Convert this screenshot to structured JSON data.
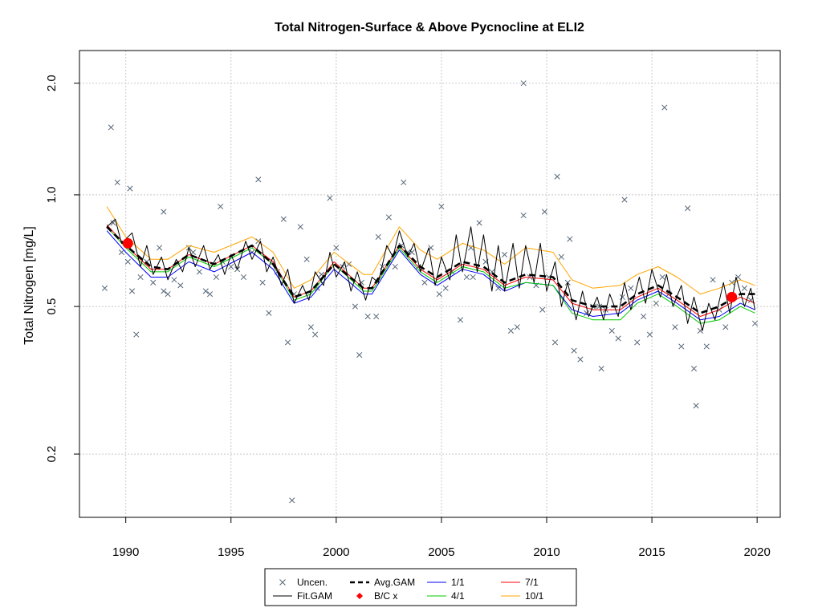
{
  "chart_data": {
    "type": "line",
    "title": "Total Nitrogen-Surface & Above Pycnocline at ELI2",
    "xlabel": "",
    "ylabel": "Total Nitrogen [mg/L]",
    "y_scale": "log",
    "xlim": [
      1987.8,
      2021.1
    ],
    "ylim": [
      0.135,
      2.45
    ],
    "x_ticks": [
      1990,
      1995,
      2000,
      2005,
      2010,
      2015,
      2020
    ],
    "y_ticks": [
      0.2,
      0.5,
      1.0,
      2.0
    ],
    "grid": true,
    "legend_position": "bottom",
    "colors": {
      "uncen": "#556677",
      "fit_gam": "#000000",
      "avg_gam": "#000000",
      "bc": "#ff0000",
      "s1_1": "#0000ff",
      "s4_1": "#00cc00",
      "s7_1": "#ff0000",
      "s10_1": "#ffa500"
    },
    "legend": [
      {
        "key": "uncen",
        "label": "Uncen."
      },
      {
        "key": "fit_gam",
        "label": "Fit.GAM"
      },
      {
        "key": "avg_gam",
        "label": "Avg.GAM"
      },
      {
        "key": "bc",
        "label": "B/C x"
      },
      {
        "key": "s1_1",
        "label": "1/1"
      },
      {
        "key": "s4_1",
        "label": "4/1"
      },
      {
        "key": "s7_1",
        "label": "7/1"
      },
      {
        "key": "s10_1",
        "label": "10/1"
      }
    ],
    "series": [
      {
        "name": "Avg.GAM",
        "key": "avg_gam",
        "style": "dashed",
        "x": [
          1989.1,
          1990.0,
          1991.2,
          1992.0,
          1993.0,
          1994.2,
          1996.0,
          1997.0,
          1998.0,
          1998.8,
          1999.9,
          2001.3,
          2001.7,
          2003.0,
          2004.0,
          2004.8,
          2006.0,
          2007.0,
          2008.0,
          2009.0,
          2010.3,
          2011.2,
          2012.2,
          2013.5,
          2014.3,
          2015.3,
          2016.2,
          2017.3,
          2018.2,
          2019.2,
          2019.9
        ],
        "y": [
          0.82,
          0.73,
          0.64,
          0.63,
          0.69,
          0.65,
          0.73,
          0.65,
          0.53,
          0.55,
          0.65,
          0.56,
          0.56,
          0.73,
          0.64,
          0.6,
          0.66,
          0.64,
          0.58,
          0.61,
          0.6,
          0.52,
          0.5,
          0.5,
          0.54,
          0.57,
          0.53,
          0.48,
          0.5,
          0.54,
          0.54
        ]
      },
      {
        "name": "Fit.GAM",
        "key": "fit_gam",
        "style": "solid",
        "x": [
          1989.1,
          1989.5,
          1989.8,
          1990.3,
          1990.7,
          1991.0,
          1991.3,
          1991.7,
          1992.0,
          1992.4,
          1992.7,
          1993.0,
          1993.3,
          1993.7,
          1994.0,
          1994.4,
          1994.7,
          1995.0,
          1995.3,
          1995.7,
          1996.0,
          1996.4,
          1996.7,
          1997.0,
          1997.4,
          1997.7,
          1998.0,
          1998.4,
          1998.7,
          1999.0,
          1999.4,
          1999.7,
          2000.0,
          2000.4,
          2000.7,
          2001.0,
          2001.4,
          2001.7,
          2002.0,
          2002.4,
          2002.7,
          2003.0,
          2003.4,
          2003.7,
          2004.0,
          2004.4,
          2004.7,
          2005.0,
          2005.4,
          2005.7,
          2006.0,
          2006.4,
          2006.7,
          2007.0,
          2007.4,
          2007.7,
          2008.0,
          2008.4,
          2008.7,
          2009.0,
          2009.4,
          2009.7,
          2010.0,
          2010.4,
          2010.7,
          2011.0,
          2011.4,
          2011.7,
          2012.0,
          2012.4,
          2012.7,
          2013.0,
          2013.4,
          2013.7,
          2014.0,
          2014.4,
          2014.7,
          2015.0,
          2015.4,
          2015.7,
          2016.0,
          2016.4,
          2016.7,
          2017.0,
          2017.4,
          2017.7,
          2018.0,
          2018.4,
          2018.7,
          2019.0,
          2019.4,
          2019.7,
          2019.9
        ],
        "y": [
          0.82,
          0.86,
          0.74,
          0.79,
          0.64,
          0.73,
          0.61,
          0.68,
          0.59,
          0.67,
          0.62,
          0.72,
          0.64,
          0.73,
          0.63,
          0.69,
          0.61,
          0.69,
          0.63,
          0.75,
          0.67,
          0.75,
          0.62,
          0.68,
          0.57,
          0.63,
          0.51,
          0.57,
          0.52,
          0.62,
          0.57,
          0.7,
          0.6,
          0.66,
          0.55,
          0.62,
          0.52,
          0.6,
          0.58,
          0.73,
          0.68,
          0.8,
          0.68,
          0.74,
          0.62,
          0.72,
          0.57,
          0.68,
          0.59,
          0.78,
          0.62,
          0.82,
          0.62,
          0.78,
          0.55,
          0.73,
          0.55,
          0.74,
          0.56,
          0.73,
          0.58,
          0.74,
          0.55,
          0.66,
          0.5,
          0.58,
          0.46,
          0.55,
          0.47,
          0.53,
          0.46,
          0.54,
          0.47,
          0.58,
          0.49,
          0.6,
          0.51,
          0.63,
          0.53,
          0.61,
          0.5,
          0.57,
          0.45,
          0.53,
          0.43,
          0.51,
          0.46,
          0.58,
          0.48,
          0.6,
          0.5,
          0.56,
          0.49
        ]
      },
      {
        "name": "1/1",
        "key": "s1_1",
        "style": "solid",
        "x": [
          1989.1,
          1990.0,
          1991.2,
          1992.0,
          1993.0,
          1994.2,
          1996.0,
          1997.0,
          1998.0,
          1998.8,
          1999.9,
          2001.3,
          2001.7,
          2003.0,
          2004.0,
          2004.8,
          2006.0,
          2007.0,
          2008.0,
          2009.0,
          2010.3,
          2011.2,
          2012.2,
          2013.5,
          2014.3,
          2015.3,
          2016.2,
          2017.3,
          2018.2,
          2019.2,
          2019.9
        ],
        "y": [
          0.8,
          0.7,
          0.6,
          0.6,
          0.66,
          0.62,
          0.7,
          0.63,
          0.51,
          0.53,
          0.63,
          0.54,
          0.54,
          0.71,
          0.61,
          0.57,
          0.63,
          0.61,
          0.55,
          0.58,
          0.57,
          0.49,
          0.47,
          0.48,
          0.52,
          0.55,
          0.51,
          0.46,
          0.47,
          0.51,
          0.49
        ]
      },
      {
        "name": "4/1",
        "key": "s4_1",
        "style": "solid",
        "x": [
          1989.1,
          1990.0,
          1991.2,
          1992.0,
          1993.0,
          1994.2,
          1996.0,
          1997.0,
          1998.0,
          1998.8,
          1999.9,
          2001.3,
          2001.7,
          2003.0,
          2004.0,
          2004.8,
          2006.0,
          2007.0,
          2008.0,
          2009.0,
          2010.3,
          2011.2,
          2012.2,
          2013.5,
          2014.3,
          2015.3,
          2016.2,
          2017.3,
          2018.2,
          2019.2,
          2019.9
        ],
        "y": [
          0.82,
          0.72,
          0.62,
          0.62,
          0.68,
          0.64,
          0.72,
          0.65,
          0.52,
          0.54,
          0.65,
          0.55,
          0.55,
          0.72,
          0.62,
          0.58,
          0.64,
          0.62,
          0.56,
          0.58,
          0.57,
          0.48,
          0.46,
          0.46,
          0.51,
          0.54,
          0.5,
          0.45,
          0.46,
          0.5,
          0.48
        ]
      },
      {
        "name": "7/1",
        "key": "s7_1",
        "style": "solid",
        "x": [
          1989.1,
          1990.0,
          1991.2,
          1992.0,
          1993.0,
          1994.2,
          1996.0,
          1997.0,
          1998.0,
          1998.8,
          1999.9,
          2001.3,
          2001.7,
          2003.0,
          2004.0,
          2004.8,
          2006.0,
          2007.0,
          2008.0,
          2009.0,
          2010.3,
          2011.2,
          2012.2,
          2013.5,
          2014.3,
          2015.3,
          2016.2,
          2017.3,
          2018.2,
          2019.2,
          2019.9
        ],
        "y": [
          0.83,
          0.73,
          0.63,
          0.63,
          0.69,
          0.65,
          0.73,
          0.66,
          0.53,
          0.55,
          0.66,
          0.56,
          0.56,
          0.73,
          0.63,
          0.59,
          0.65,
          0.63,
          0.57,
          0.6,
          0.59,
          0.51,
          0.49,
          0.49,
          0.53,
          0.56,
          0.52,
          0.47,
          0.49,
          0.53,
          0.51
        ]
      },
      {
        "name": "10/1",
        "key": "s10_1",
        "style": "solid",
        "x": [
          1989.1,
          1990.0,
          1991.2,
          1992.0,
          1993.0,
          1994.2,
          1996.0,
          1997.0,
          1998.0,
          1998.8,
          1999.9,
          2001.3,
          2001.7,
          2003.0,
          2004.0,
          2004.8,
          2006.0,
          2007.0,
          2008.0,
          2009.0,
          2010.3,
          2011.2,
          2012.2,
          2013.5,
          2014.3,
          2015.3,
          2016.2,
          2017.3,
          2018.2,
          2019.2,
          2019.9
        ],
        "y": [
          0.93,
          0.77,
          0.67,
          0.67,
          0.73,
          0.7,
          0.77,
          0.7,
          0.56,
          0.59,
          0.7,
          0.61,
          0.61,
          0.82,
          0.71,
          0.67,
          0.74,
          0.71,
          0.65,
          0.72,
          0.7,
          0.59,
          0.56,
          0.57,
          0.61,
          0.64,
          0.6,
          0.54,
          0.56,
          0.59,
          0.57
        ]
      }
    ],
    "bc_points": [
      {
        "x": 1990.1,
        "y": 0.74
      },
      {
        "x": 2018.8,
        "y": 0.53
      }
    ],
    "uncen_points": {
      "x": [
        1989.0,
        1989.3,
        1989.6,
        1989.8,
        1990.1,
        1990.3,
        1990.5,
        1990.7,
        1991.0,
        1991.3,
        1991.6,
        1991.8,
        1992.0,
        1992.3,
        1992.6,
        1993.0,
        1993.2,
        1993.5,
        1993.8,
        1994.0,
        1994.3,
        1994.6,
        1995.0,
        1995.3,
        1995.6,
        1996.0,
        1996.3,
        1996.5,
        1996.8,
        1997.2,
        1997.5,
        1997.7,
        1998.0,
        1998.3,
        1998.6,
        1998.8,
        1999.0,
        1999.3,
        1999.7,
        2000.0,
        2000.3,
        2000.6,
        2000.9,
        2001.2,
        2001.5,
        2001.9,
        2002.2,
        2002.5,
        2002.8,
        2003.1,
        2003.4,
        2003.6,
        2003.9,
        2004.2,
        2004.5,
        2004.9,
        2005.2,
        2005.5,
        2005.9,
        2006.2,
        2006.5,
        2006.8,
        2007.1,
        2007.4,
        2007.7,
        2008.0,
        2008.3,
        2008.6,
        2008.9,
        2009.2,
        2009.5,
        2009.8,
        2010.1,
        2010.4,
        2010.7,
        2011.0,
        2011.3,
        2011.6,
        2011.9,
        2012.2,
        2012.5,
        2012.8,
        2013.1,
        2013.4,
        2013.7,
        2014.0,
        2014.3,
        2014.6,
        2014.9,
        2015.2,
        2015.5,
        2015.8,
        2016.1,
        2016.4,
        2016.7,
        2017.0,
        2017.3,
        2017.6,
        2017.9,
        2018.2,
        2018.5,
        2018.8,
        2019.1,
        2019.4,
        2019.7,
        2019.9,
        1989.4,
        1990.2,
        1997.9,
        2001.1,
        2002.0,
        2005.0,
        2008.9,
        2010.5,
        2012.6,
        2015.6,
        2017.1,
        2013.6,
        1996.3,
        2003.2,
        1991.8,
        1994.5,
        1999.1,
        2006.4,
        2009.9,
        2011.1
      ],
      "y": [
        0.56,
        1.52,
        1.08,
        0.7,
        0.66,
        0.55,
        0.42,
        0.6,
        0.66,
        0.58,
        0.72,
        0.55,
        0.54,
        0.59,
        0.57,
        0.72,
        0.7,
        0.62,
        0.55,
        0.54,
        0.6,
        0.66,
        0.64,
        0.63,
        0.6,
        0.7,
        0.75,
        0.58,
        0.48,
        0.62,
        0.86,
        0.4,
        0.54,
        0.82,
        0.67,
        0.44,
        0.42,
        0.61,
        0.98,
        0.72,
        0.64,
        0.65,
        0.5,
        0.58,
        0.47,
        0.47,
        0.64,
        0.87,
        0.64,
        0.73,
        0.7,
        0.7,
        0.64,
        0.58,
        0.72,
        0.54,
        0.56,
        0.62,
        0.46,
        0.6,
        0.6,
        0.84,
        0.66,
        0.62,
        0.56,
        0.69,
        0.43,
        0.44,
        0.88,
        0.6,
        0.57,
        0.49,
        0.6,
        0.4,
        0.68,
        0.58,
        0.38,
        0.36,
        0.48,
        0.5,
        0.5,
        0.49,
        0.43,
        0.41,
        0.97,
        0.56,
        0.4,
        0.47,
        0.42,
        0.51,
        0.6,
        0.54,
        0.44,
        0.39,
        0.92,
        0.34,
        0.43,
        0.39,
        0.59,
        0.49,
        0.44,
        0.58,
        0.6,
        0.56,
        0.52,
        0.45,
        0.84,
        1.04,
        0.15,
        0.37,
        0.77,
        0.93,
        2.0,
        1.12,
        0.34,
        1.72,
        0.27,
        0.53,
        1.1,
        1.08,
        0.9,
        0.93,
        0.56,
        0.72,
        0.9,
        0.76
      ]
    }
  }
}
